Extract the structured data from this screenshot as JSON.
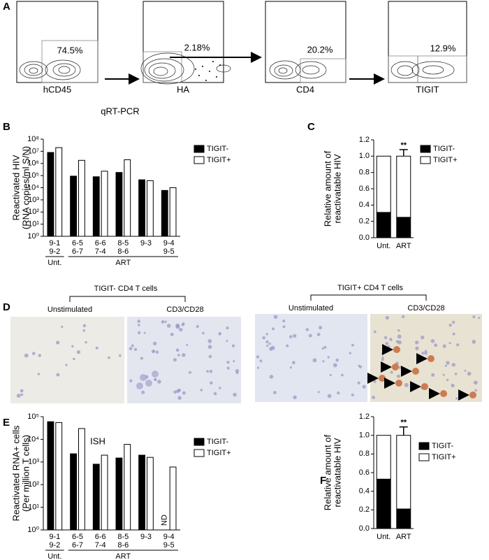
{
  "figure": {
    "panel_letters": [
      "A",
      "B",
      "C",
      "D",
      "E",
      "F"
    ],
    "panel_a": {
      "plots": [
        {
          "gate": "74.5%",
          "axis": "hCD45"
        },
        {
          "gate": "2.18%",
          "axis": "HA"
        },
        {
          "gate": "20.2%",
          "axis": "CD4"
        },
        {
          "gate": "12.9%",
          "axis": "TIGIT"
        }
      ]
    },
    "panel_d": {
      "groups": [
        {
          "title": "TIGIT- CD4 T cells",
          "conditions": [
            "Unstimulated",
            "CD3/CD28"
          ]
        },
        {
          "title": "TIGIT+ CD4 T cells",
          "conditions": [
            "Unstimulated",
            "CD3/CD28"
          ]
        }
      ]
    }
  },
  "chart_data": [
    {
      "type": "bar",
      "title": "qRT-PCR",
      "ylabel": [
        "Reactivated HIV",
        "(RNA copies/ml S/N)"
      ],
      "log_scale": true,
      "categories": [
        [
          "9-1",
          "9-2"
        ],
        [
          "6-5",
          "6-7"
        ],
        [
          "6-6",
          "7-4"
        ],
        [
          "8-5",
          "8-6"
        ],
        [
          "9-3"
        ],
        [
          "9-4",
          "9-5"
        ]
      ],
      "groups": [
        {
          "label": "Unt.",
          "size": 1
        },
        {
          "label": "ART",
          "size": 5
        }
      ],
      "series": [
        {
          "name": "TIGIT-",
          "color": "#000000",
          "values": [
            8000000,
            90000,
            80000,
            180000,
            45000,
            6000
          ]
        },
        {
          "name": "TIGIT+",
          "color": "#ffffff",
          "values": [
            20000000,
            1800000,
            230000,
            2000000,
            38000,
            10000
          ]
        }
      ],
      "ylim": [
        1,
        100000000
      ],
      "yticks": [
        {
          "value": 1,
          "label": "10⁰"
        },
        {
          "value": 10,
          "label": "10¹"
        },
        {
          "value": 100,
          "label": "10²"
        },
        {
          "value": 1000,
          "label": "10³"
        },
        {
          "value": 10000,
          "label": "10⁴"
        },
        {
          "value": 100000,
          "label": "10⁵"
        },
        {
          "value": 1000000,
          "label": "10⁶"
        },
        {
          "value": 10000000,
          "label": "10⁷"
        },
        {
          "value": 100000000,
          "label": "10⁸"
        }
      ]
    },
    {
      "type": "stacked_bar",
      "ylabel": [
        "Relative amount of",
        "reactivatable HIV"
      ],
      "annotation": "**",
      "categories": [
        "Unt.",
        "ART"
      ],
      "series": [
        {
          "name": "TIGIT-",
          "color": "#000000",
          "values": [
            0.31,
            0.25
          ],
          "errors": [
            null,
            0.1
          ]
        },
        {
          "name": "TIGIT+",
          "color": "#ffffff",
          "values": [
            0.69,
            0.75
          ],
          "errors": [
            null,
            0.08
          ]
        }
      ],
      "ylim": [
        0,
        1.2
      ],
      "yticks": [
        {
          "value": 0,
          "label": "0.0"
        },
        0.2,
        0.4,
        0.6,
        0.8,
        {
          "value": 1,
          "label": "1.0"
        },
        1.2
      ]
    },
    {
      "type": "bar",
      "title": "ISH",
      "ylabel": [
        "Reactivated RNA+ cells",
        "(Per million T cells)"
      ],
      "log_scale": true,
      "categories": [
        [
          "9-1",
          "9-2"
        ],
        [
          "6-5",
          "6-7"
        ],
        [
          "6-6",
          "7-4"
        ],
        [
          "8-5",
          "8-6"
        ],
        [
          "9-3"
        ],
        [
          "9-4",
          "9-5"
        ]
      ],
      "groups": [
        {
          "label": "Unt.",
          "size": 1
        },
        {
          "label": "ART",
          "size": 5
        }
      ],
      "series": [
        {
          "name": "TIGIT-",
          "color": "#000000",
          "values": [
            60000,
            2300,
            800,
            1500,
            2000,
            null
          ],
          "value_labels": [
            null,
            null,
            null,
            null,
            null,
            "ND"
          ]
        },
        {
          "name": "TIGIT+",
          "color": "#ffffff",
          "values": [
            55000,
            30000,
            2000,
            6000,
            1600,
            600
          ]
        }
      ],
      "ylim": [
        1,
        100000
      ],
      "yticks": [
        {
          "value": 1,
          "label": "10⁰"
        },
        {
          "value": 10,
          "label": "10¹"
        },
        {
          "value": 100,
          "label": "10²"
        },
        {
          "value": 1000,
          "label": "10³"
        },
        {
          "value": 10000,
          "label": "10⁴"
        },
        {
          "value": 100000,
          "label": "10⁵"
        }
      ]
    },
    {
      "type": "stacked_bar",
      "ylabel": [
        "Relative amount of",
        "reactivatable HIV"
      ],
      "annotation": "**",
      "categories": [
        "Unt.",
        "ART"
      ],
      "series": [
        {
          "name": "TIGIT-",
          "color": "#000000",
          "values": [
            0.53,
            0.21
          ],
          "errors": [
            null,
            0.1
          ]
        },
        {
          "name": "TIGIT+",
          "color": "#ffffff",
          "values": [
            0.47,
            0.79
          ],
          "errors": [
            null,
            0.09
          ]
        }
      ],
      "ylim": [
        0,
        1.2
      ],
      "yticks": [
        {
          "value": 0,
          "label": "0.0"
        },
        0.2,
        0.4,
        0.6,
        0.8,
        {
          "value": 1,
          "label": "1.0"
        },
        1.2
      ]
    }
  ]
}
